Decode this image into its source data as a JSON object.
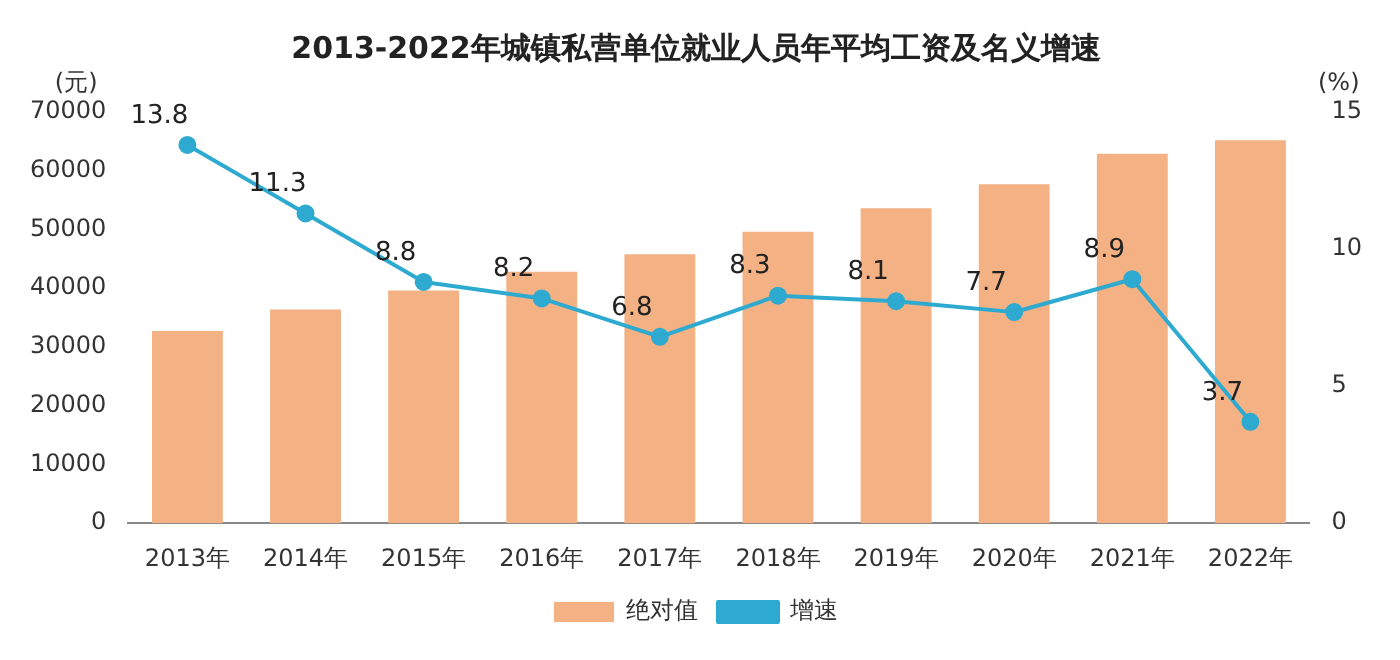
{
  "chart_data": {
    "type": "bar",
    "title": "2013-2022年城镇私营单位就业人员年平均工资及名义增速",
    "ylabel": "(元)",
    "y2label": "(%)",
    "categories": [
      "2013年",
      "2014年",
      "2015年",
      "2016年",
      "2017年",
      "2018年",
      "2019年",
      "2020年",
      "2021年",
      "2022年"
    ],
    "series": [
      {
        "name": "绝对值",
        "color": "#f4b183",
        "values": [
          32700,
          36400,
          39600,
          42800,
          45800,
          49600,
          53600,
          57700,
          62900,
          65200
        ]
      },
      {
        "name": "增速",
        "type": "line",
        "axis": "y2",
        "color": "#2eaad1",
        "marker": "circle",
        "values": [
          13.8,
          11.3,
          8.8,
          8.2,
          6.8,
          8.3,
          8.1,
          7.7,
          8.9,
          3.7
        ],
        "value_labels": [
          "13.8",
          "11.3",
          "8.8",
          "8.2",
          "6.8",
          "8.3",
          "8.1",
          "7.7",
          "8.9",
          "3.7"
        ]
      }
    ],
    "ylim": [
      0,
      70000
    ],
    "yticks": [
      0,
      10000,
      20000,
      30000,
      40000,
      50000,
      60000,
      70000
    ],
    "y2lim": [
      0,
      15
    ],
    "y2ticks": [
      0,
      5,
      10,
      15
    ],
    "grid": false,
    "legend": "bottom"
  }
}
